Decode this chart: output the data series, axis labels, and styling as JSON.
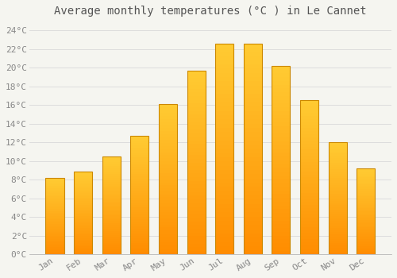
{
  "title": "Average monthly temperatures (°C ) in Le Cannet",
  "months": [
    "Jan",
    "Feb",
    "Mar",
    "Apr",
    "May",
    "Jun",
    "Jul",
    "Aug",
    "Sep",
    "Oct",
    "Nov",
    "Dec"
  ],
  "temperatures": [
    8.2,
    8.9,
    10.5,
    12.7,
    16.1,
    19.7,
    22.6,
    22.6,
    20.2,
    16.5,
    12.0,
    9.2
  ],
  "bar_color_top": "#FFB300",
  "bar_color_bottom": "#FFA000",
  "bar_edge_color": "#CC8800",
  "background_color": "#F5F5F0",
  "plot_bg_color": "#F5F5F0",
  "grid_color": "#DDDDDD",
  "ylim": [
    0,
    25
  ],
  "yticks": [
    0,
    2,
    4,
    6,
    8,
    10,
    12,
    14,
    16,
    18,
    20,
    22,
    24
  ],
  "title_fontsize": 10,
  "tick_fontsize": 8,
  "tick_font_color": "#888888",
  "title_font_color": "#555555",
  "bar_width": 0.65
}
